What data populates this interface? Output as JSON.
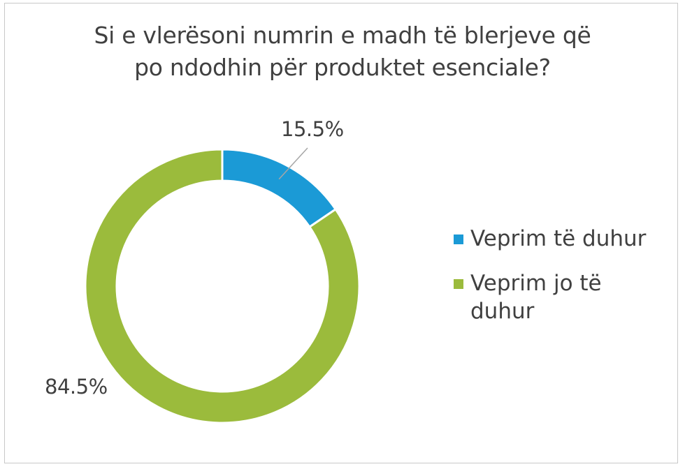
{
  "chart_data": {
    "type": "pie",
    "variant": "donut",
    "title": "Si e vlerësoni numrin e madh të blerjeve që po ndodhin për produktet esenciale?",
    "title_lines": [
      "Si e vlerësoni numrin e madh të blerjeve që",
      "po ndodhin për produktet esenciale?"
    ],
    "categories": [
      "Veprim të duhur",
      "Veprim jo të duhur"
    ],
    "values": [
      15.5,
      84.5
    ],
    "labels": [
      "15.5%",
      "84.5%"
    ],
    "colors": [
      "#1b9ad6",
      "#9bbb3c"
    ],
    "legend_position": "right"
  }
}
